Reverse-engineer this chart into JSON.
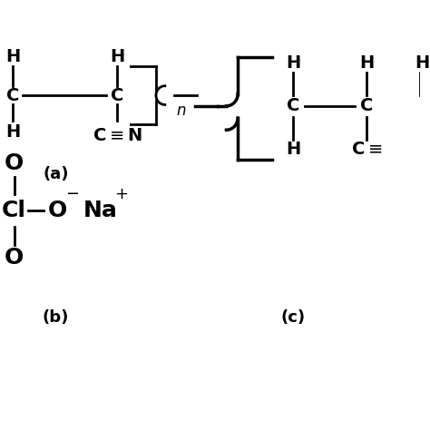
{
  "bg_color": "#ffffff",
  "text_color": "#000000",
  "fig_width": 4.74,
  "fig_height": 4.74,
  "dpi": 100,
  "label_a": "(a)",
  "label_b": "(b)",
  "label_c": "(c)",
  "xlim": [
    0,
    10
  ],
  "ylim": [
    0,
    10
  ],
  "lw": 2.0,
  "bold_fs": 14,
  "n_fs": 12,
  "label_fs": 13,
  "b_fs": 18
}
